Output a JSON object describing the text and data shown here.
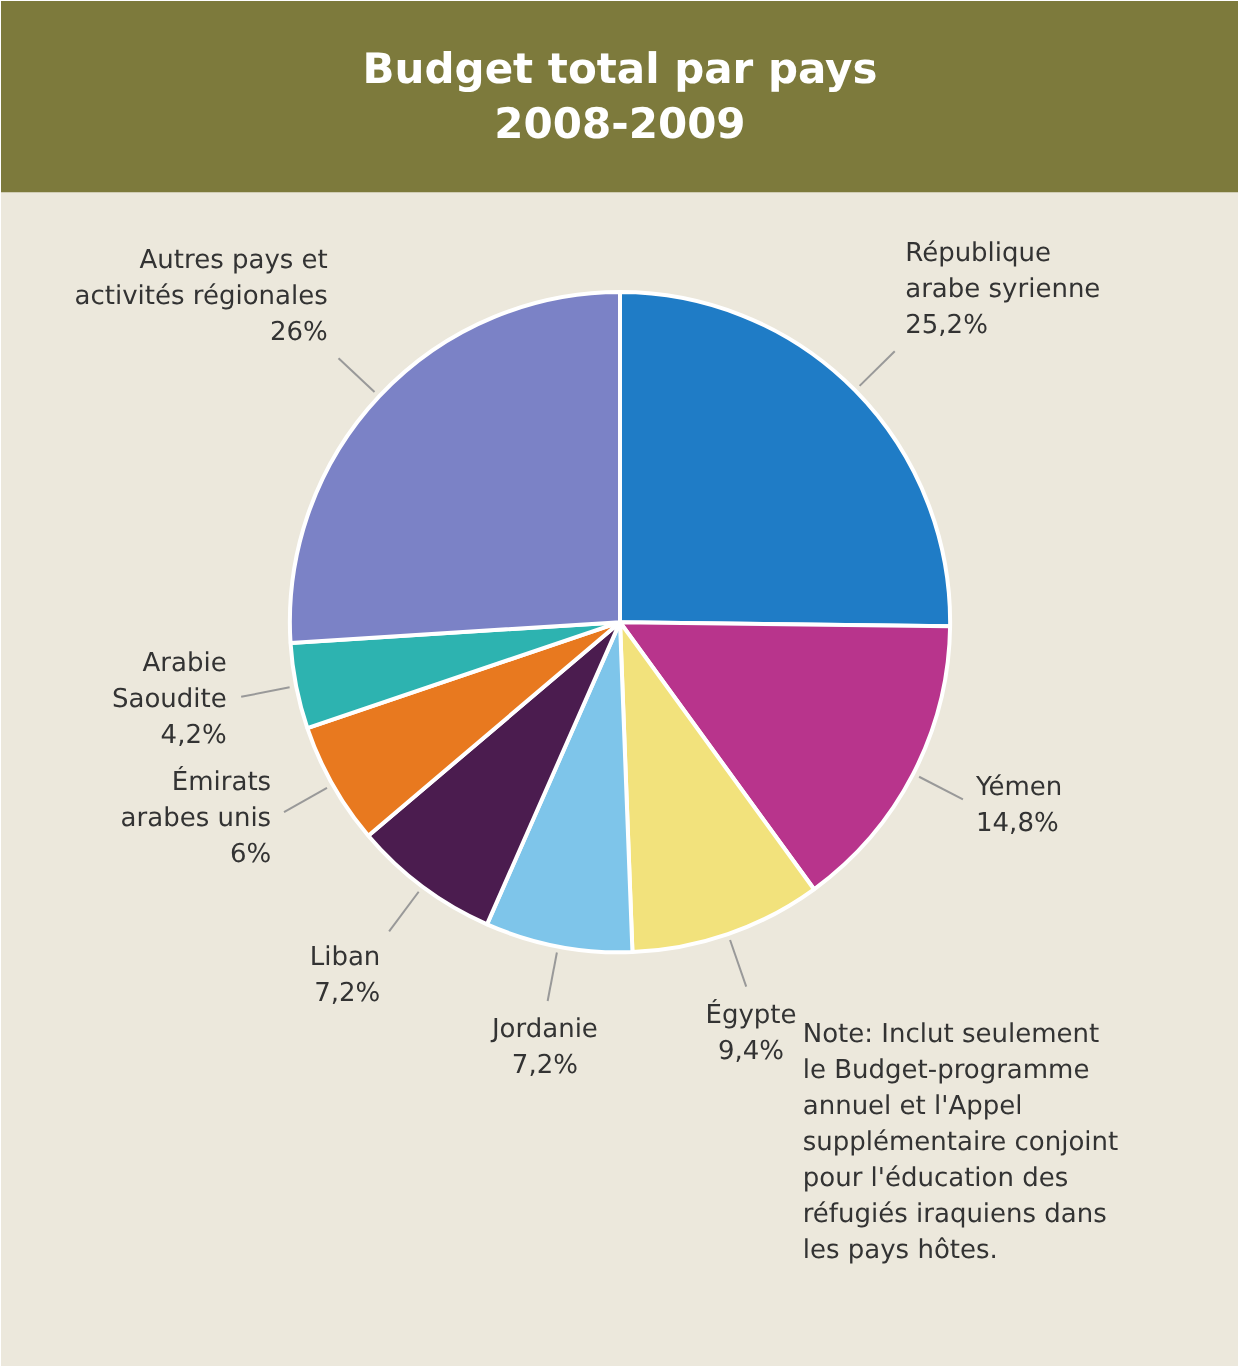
{
  "chart_data": {
    "type": "pie",
    "title": "Budget total par pays\n2008-2009",
    "categories": [
      "République\narabe syrienne",
      "Yémen",
      "Égypte",
      "Jordanie",
      "Liban",
      "Émirats\narabes unis",
      "Arabie\nSaoudite",
      "Autres pays et\nactivités régionales"
    ],
    "values": [
      25.2,
      14.8,
      9.4,
      7.2,
      7.2,
      6,
      4.2,
      26
    ],
    "value_labels": [
      "25,2%",
      "14,8%",
      "9,4%",
      "7,2%",
      "7,2%",
      "6%",
      "4,2%",
      "26%"
    ],
    "colors": [
      "#1f7cc6",
      "#b8348c",
      "#f2e27c",
      "#7ec5ea",
      "#4b1c4f",
      "#e8791f",
      "#2db3b0",
      "#7b82c6"
    ],
    "annotations": [
      "Note: Inclut seulement\nle Budget-programme\nannuel et l'Appel\nsupplémentaire conjoint\npour l'éducation des\nréfugiés iraquiens dans\nles pays hôtes."
    ]
  }
}
